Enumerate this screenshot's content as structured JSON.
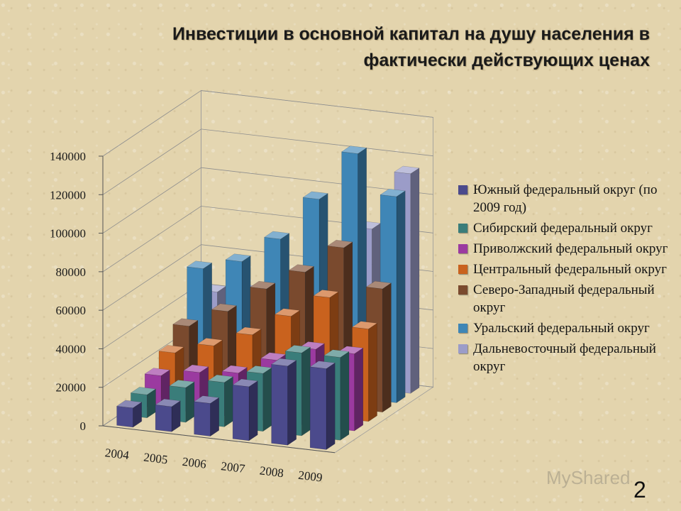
{
  "chart_data": {
    "type": "bar",
    "title": [
      "Инвестиции в основной капитал на душу населения в",
      "фактически действующих ценах"
    ],
    "categories": [
      "2004",
      "2005",
      "2006",
      "2007",
      "2008",
      "2009"
    ],
    "ylim": [
      0,
      140000
    ],
    "yticks": [
      "0",
      "20000",
      "40000",
      "60000",
      "80000",
      "100000",
      "120000",
      "140000"
    ],
    "grid": true,
    "legend_position": "right",
    "series": [
      {
        "name": "Южный федеральный округ (по 2009 год)",
        "color": "#4b4a8c",
        "values": [
          10000,
          13000,
          17000,
          28000,
          41000,
          42000
        ]
      },
      {
        "name": "Сибирский федеральный округ",
        "color": "#3a7d7a",
        "values": [
          12000,
          18000,
          23000,
          30000,
          43000,
          43000
        ]
      },
      {
        "name": "Приволжский федеральный округ",
        "color": "#9b3aa0",
        "values": [
          17000,
          21000,
          23000,
          32000,
          40000,
          40000
        ]
      },
      {
        "name": "Центральный федеральный округ",
        "color": "#c9621e",
        "values": [
          24000,
          30000,
          38000,
          50000,
          62000,
          48000
        ]
      },
      {
        "name": "Северо-Западный федеральный округ",
        "color": "#7a4a2e",
        "values": [
          33000,
          43000,
          57000,
          68000,
          83000,
          64000
        ]
      },
      {
        "name": "Уральский федеральный округ",
        "color": "#3f86b6",
        "values": [
          58000,
          64000,
          78000,
          101000,
          127000,
          107000
        ]
      },
      {
        "name": "Дальневосточный федеральный округ",
        "color": "#9b9cc8",
        "values": [
          41000,
          43000,
          48000,
          58000,
          83000,
          114000
        ]
      }
    ]
  },
  "watermark": "MyShared",
  "slide_number": "2"
}
